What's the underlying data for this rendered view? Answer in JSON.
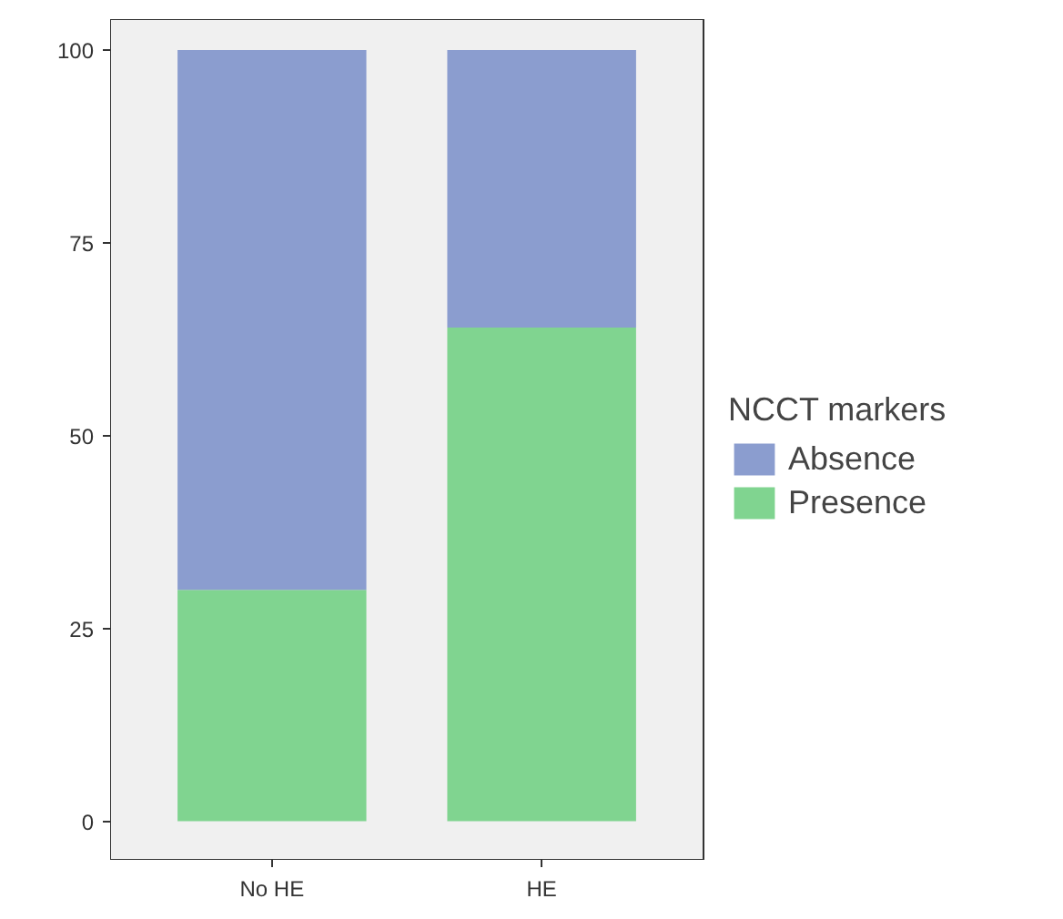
{
  "chart_data": {
    "type": "bar",
    "stacked": true,
    "categories": [
      "No HE",
      "HE"
    ],
    "legend_title": "NCCT markers",
    "series": [
      {
        "name": "Presence",
        "color": "#80d490",
        "values": [
          30,
          64
        ]
      },
      {
        "name": "Absence",
        "color": "#8b9dcf",
        "values": [
          70,
          36
        ]
      }
    ],
    "ylim": [
      -5,
      104
    ],
    "yticks": [
      0,
      25,
      50,
      75,
      100
    ],
    "grid": false,
    "legend": "right"
  }
}
